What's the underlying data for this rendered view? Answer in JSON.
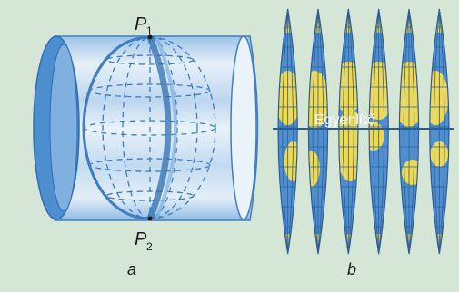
{
  "labels": {
    "pole_north": "P",
    "pole_north_sub": "1",
    "pole_south": "P",
    "pole_south_sub": "2",
    "panel_a": "a",
    "panel_b": "b",
    "equator": "Egyenlítő"
  },
  "colors": {
    "background": "#d6e6d6",
    "cylinder_blue": "#5b9ad6",
    "cylinder_light": "#dbe9f5",
    "ocean": "#4f8fcf",
    "land": "#f2d94a",
    "grid": "#2c5f98"
  },
  "gores": {
    "count": 6
  }
}
